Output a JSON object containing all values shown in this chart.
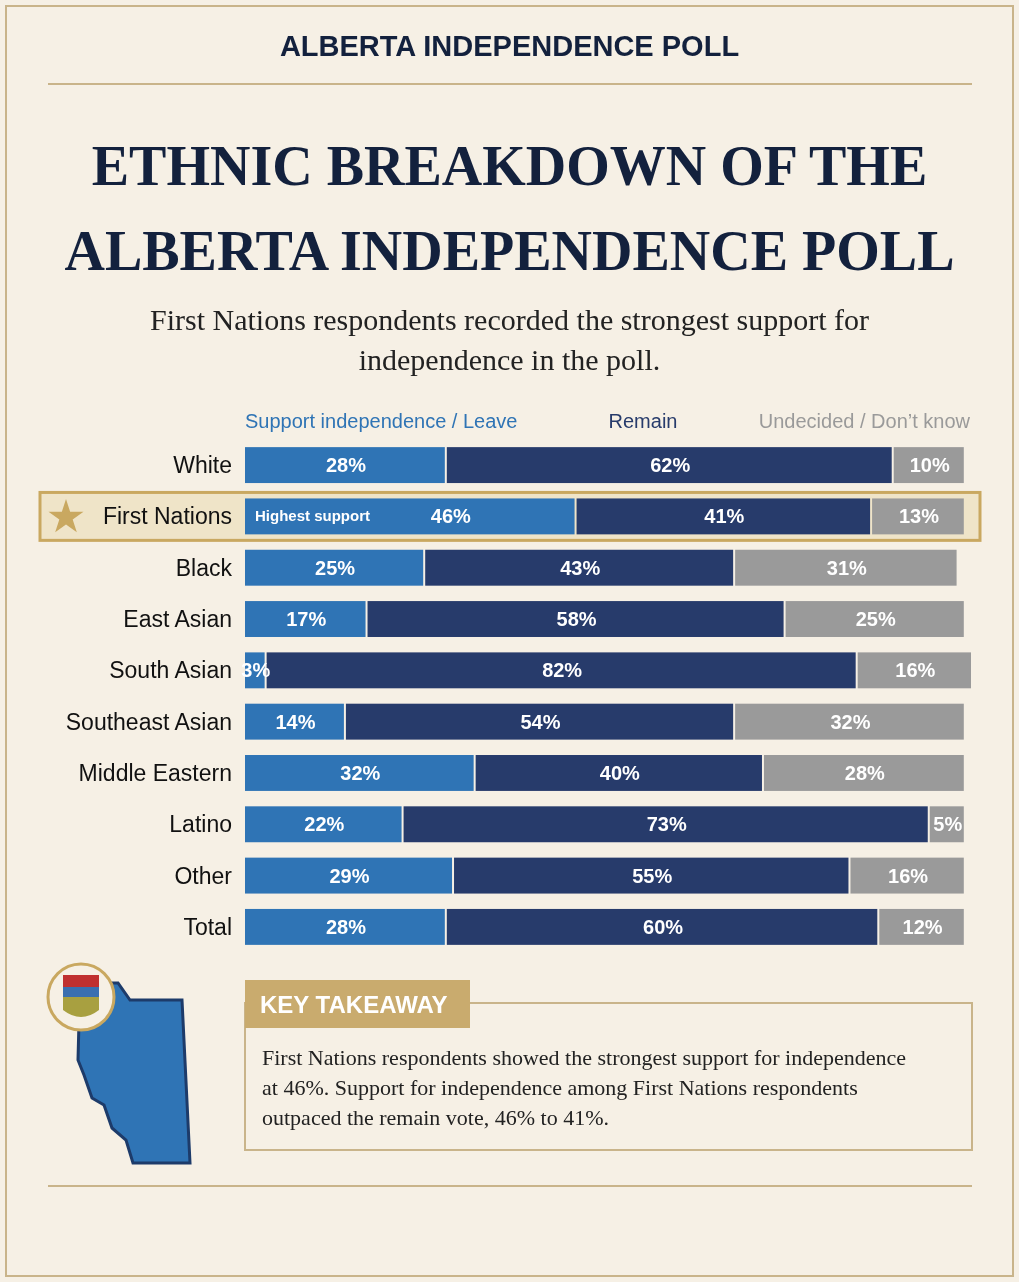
{
  "chart_data": {
    "type": "bar",
    "orientation": "horizontal",
    "stacked": true,
    "title": "ETHNIC BREAKDOWN OF THE ALBERTA INDEPENDENCE POLL",
    "subtitle": "First Nations respondents recorded the strongest support for independence in the poll.",
    "categories": [
      "White",
      "First Nations",
      "Black",
      "East Asian",
      "South Asian",
      "Southeast Asian",
      "Middle Eastern",
      "Latino",
      "Other",
      "Total"
    ],
    "series": [
      {
        "name": "Support independence / Leave",
        "color": "#2f74b5",
        "values": [
          28,
          46,
          25,
          17,
          3,
          14,
          32,
          22,
          29,
          28
        ],
        "value_labels": [
          "28%",
          "46%",
          "25%",
          "17%",
          "3%",
          "14%",
          "32%",
          "22%",
          "29%",
          "28%"
        ]
      },
      {
        "name": "Remain",
        "color": "#273b6b",
        "values": [
          62,
          41,
          43,
          58,
          82,
          54,
          40,
          73,
          55,
          60
        ],
        "value_labels": [
          "62%",
          "41%",
          "43%",
          "58%",
          "82%",
          "54%",
          "40%",
          "73%",
          "55%",
          "60%"
        ]
      },
      {
        "name": "Undecided / Don’t know",
        "color": "#9a9a9a",
        "values": [
          10,
          13,
          31,
          25,
          16,
          32,
          28,
          5,
          16,
          12
        ],
        "value_labels": [
          "10%",
          "13%",
          "31%",
          "25%",
          "16%",
          "32%",
          "28%",
          "5%",
          "16%",
          "12%"
        ]
      }
    ],
    "tick_labels": "y",
    "legend": "top",
    "annotations": [
      "ALBERTA INDEPENDENCE POLL",
      {
        "text": "Highest support",
        "x": 0,
        "y": "First Nations"
      },
      "KEY TAKEAWAY",
      "First Nations respondents showed the strongest support for independence at 46%. Support for independence among First Nations respondents outpaced the remain vote, 46% to 41%."
    ]
  }
}
